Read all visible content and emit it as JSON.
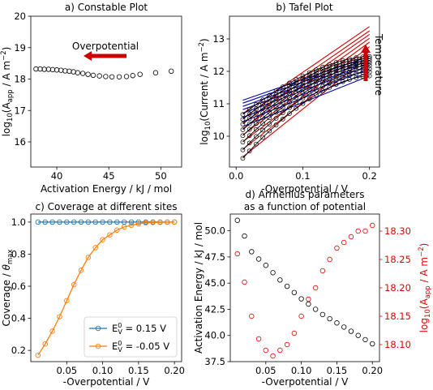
{
  "chart_data": [
    {
      "type": "scatter",
      "title": "a) Constable Plot",
      "xlabel": "Activation Energy / kJ / mol",
      "ylabel": "log10(A_app / A m^-2)",
      "ylabel_parts": {
        "pre": "log",
        "sub1": "10",
        "mid": "(A",
        "sub2": "app",
        "post": " / A m",
        "sup": "−2",
        "end": ")"
      },
      "xlim": [
        37.5,
        52
      ],
      "ylim": [
        15.2,
        20
      ],
      "xticks": [
        40,
        45,
        50
      ],
      "yticks": [
        15,
        16,
        17,
        18,
        19,
        20
      ],
      "annotation": "Overpotential",
      "points": [
        [
          51.0,
          18.25
        ],
        [
          49.5,
          18.2
        ],
        [
          48.0,
          18.15
        ],
        [
          47.3,
          18.11
        ],
        [
          46.7,
          18.08
        ],
        [
          46.0,
          18.07
        ],
        [
          45.3,
          18.07
        ],
        [
          44.7,
          18.08
        ],
        [
          44.1,
          18.1
        ],
        [
          43.5,
          18.12
        ],
        [
          43.0,
          18.15
        ],
        [
          42.5,
          18.18
        ],
        [
          42.0,
          18.2
        ],
        [
          41.6,
          18.23
        ],
        [
          41.2,
          18.25
        ],
        [
          40.8,
          18.26
        ],
        [
          40.4,
          18.28
        ],
        [
          40.0,
          18.29
        ],
        [
          39.6,
          18.3
        ],
        [
          39.2,
          18.31
        ],
        [
          38.8,
          18.31
        ],
        [
          38.4,
          18.32
        ],
        [
          38.0,
          18.32
        ]
      ]
    },
    {
      "type": "line",
      "title": "b) Tafel Plot",
      "xlabel": "-Overpotential / V",
      "ylabel": "log10(Current / A m^-2)",
      "ylabel_parts": {
        "pre": "log",
        "sub1": "10",
        "post": "(Current / A  m",
        "sup": "−2",
        "end": ")"
      },
      "xlim": [
        -0.01,
        0.215
      ],
      "ylim": [
        9.05,
        13.7
      ],
      "xticks": [
        0.0,
        0.1,
        0.2
      ],
      "yticks": [
        10,
        11,
        12,
        13
      ],
      "annotation": "Temperature",
      "x": [
        0.01,
        0.02,
        0.03,
        0.04,
        0.05,
        0.06,
        0.07,
        0.08,
        0.09,
        0.1,
        0.11,
        0.12,
        0.13,
        0.14,
        0.15,
        0.16,
        0.17,
        0.18,
        0.19,
        0.2
      ],
      "curve_endpoints": [
        [
          9.32,
          11.86
        ],
        [
          9.58,
          11.98
        ],
        [
          9.82,
          12.08
        ],
        [
          10.02,
          12.18
        ],
        [
          10.2,
          12.26
        ],
        [
          10.37,
          12.33
        ],
        [
          10.52,
          12.4
        ],
        [
          10.67,
          12.46
        ]
      ],
      "blue_fits": [
        [
          10.3,
          11.86
        ],
        [
          10.45,
          11.98
        ],
        [
          10.58,
          12.08
        ],
        [
          10.71,
          12.18
        ],
        [
          10.82,
          12.26
        ],
        [
          10.92,
          12.33
        ],
        [
          11.02,
          12.4
        ],
        [
          11.11,
          12.46
        ]
      ],
      "red_fits": [
        [
          9.36,
          12.48
        ],
        [
          9.6,
          12.62
        ],
        [
          9.83,
          12.76
        ],
        [
          10.04,
          12.9
        ],
        [
          10.23,
          13.02
        ],
        [
          10.4,
          13.14
        ],
        [
          10.55,
          13.25
        ],
        [
          10.7,
          13.38
        ]
      ]
    },
    {
      "type": "line",
      "title": "c) Coverage at different sites",
      "xlabel": "-Overpotential / V",
      "ylabel": "Coverage / θmax",
      "ylabel_parts": {
        "pre": "Coverage / ",
        "theta": "θ",
        "sub": "max"
      },
      "xlim": [
        0.0,
        0.21
      ],
      "ylim": [
        0.13,
        1.05
      ],
      "xticks": [
        0.05,
        0.1,
        0.15,
        0.2
      ],
      "yticks": [
        0.2,
        0.4,
        0.6,
        0.8,
        1.0
      ],
      "legend_position": "lower-right",
      "x": [
        0.01,
        0.02,
        0.03,
        0.04,
        0.05,
        0.06,
        0.07,
        0.08,
        0.09,
        0.1,
        0.11,
        0.12,
        0.13,
        0.14,
        0.15,
        0.16,
        0.17,
        0.18,
        0.19,
        0.2
      ],
      "series": [
        {
          "name": "E_V^0 = 0.15 V",
          "legend_parts": {
            "pre": "E",
            "sub": "V",
            "sup": "0",
            "post": " = 0.15 V"
          },
          "color": "#1f77b4",
          "values": [
            1.0,
            1.0,
            1.0,
            1.0,
            1.0,
            1.0,
            1.0,
            1.0,
            1.0,
            1.0,
            1.0,
            1.0,
            1.0,
            1.0,
            1.0,
            1.0,
            1.0,
            1.0,
            1.0,
            1.0
          ]
        },
        {
          "name": "E_V^0 = -0.05 V",
          "legend_parts": {
            "pre": "E",
            "sub": "V",
            "sup": "0",
            "post": " = -0.05 V"
          },
          "color": "#ff7f0e",
          "values": [
            0.17,
            0.24,
            0.32,
            0.41,
            0.51,
            0.61,
            0.7,
            0.78,
            0.84,
            0.89,
            0.92,
            0.95,
            0.97,
            0.98,
            0.99,
            0.995,
            0.997,
            0.998,
            0.999,
            1.0
          ]
        }
      ]
    },
    {
      "type": "scatter",
      "title": "d) Arrhenius parameters",
      "subtitle": "as a function of potential",
      "xlabel": "-Overpotential / V",
      "ylabel": "Activation Energy / kJ / mol",
      "ylabel_right": "log10(A_app / A m^-2)",
      "ylabel_right_parts": {
        "pre": "log",
        "sub1": "10",
        "mid": "(A",
        "sub2": "app",
        "post": " / A m",
        "sup": "−2",
        "end": ")"
      },
      "xlim": [
        0.0,
        0.21
      ],
      "ylim": [
        37.5,
        51.6
      ],
      "ylim_right": [
        18.07,
        18.33
      ],
      "xticks": [
        0.05,
        0.1,
        0.15,
        0.2
      ],
      "yticks": [
        37.5,
        40.0,
        42.5,
        45.0,
        47.5,
        50.0
      ],
      "yticks_right": [
        18.1,
        18.15,
        18.2,
        18.25,
        18.3
      ],
      "right_axis_color": "#e60000",
      "x": [
        0.01,
        0.02,
        0.03,
        0.04,
        0.05,
        0.06,
        0.07,
        0.08,
        0.09,
        0.1,
        0.11,
        0.12,
        0.13,
        0.14,
        0.15,
        0.16,
        0.17,
        0.18,
        0.19,
        0.2
      ],
      "series": [
        {
          "axis": "left",
          "color": "#000000",
          "values": [
            51.0,
            49.5,
            48.0,
            47.3,
            46.7,
            46.0,
            45.3,
            44.7,
            44.1,
            43.5,
            43.0,
            42.5,
            42.0,
            41.6,
            41.2,
            40.8,
            40.4,
            40.0,
            39.6,
            39.2
          ]
        },
        {
          "axis": "right",
          "color": "#e60000",
          "values": [
            18.26,
            18.21,
            18.15,
            18.11,
            18.09,
            18.08,
            18.09,
            18.1,
            18.12,
            18.15,
            18.18,
            18.2,
            18.23,
            18.25,
            18.27,
            18.28,
            18.29,
            18.3,
            18.3,
            18.31
          ]
        }
      ]
    }
  ]
}
